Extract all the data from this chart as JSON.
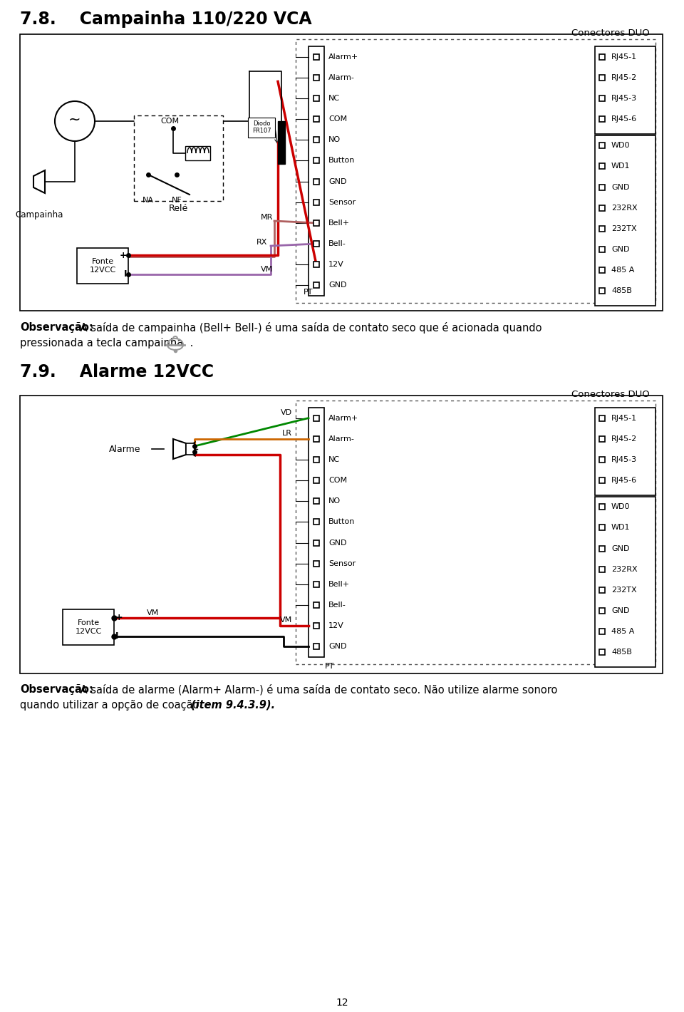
{
  "title_78": "7.8.    Campainha 110/220 VCA",
  "title_79": "7.9.    Alarme 12VCC",
  "page_number": "12",
  "obs1_bold": "Observação:",
  "obs1_line1_rest": " A saída de campainha (Bell+ Bell-) é uma saída de contato seco que é acionada quando",
  "obs1_line2": "pressionada a tecla campainha",
  "obs2_bold": "Observação:",
  "obs2_line1_rest": " A saída de alarme (Alarm+ Alarm-) é uma saída de contato seco. Não utilize alarme sonoro",
  "obs2_line2": "quando utilizar a opção de coação ",
  "obs2_italic": "(item 9.4.3.9).",
  "connector_label": "Conectores DUO",
  "left_pins": [
    "Alarm+",
    "Alarm-",
    "NC",
    "COM",
    "NO",
    "Button",
    "GND",
    "Sensor",
    "Bell+",
    "Bell-",
    "12V",
    "GND"
  ],
  "right_pins_top": [
    "RJ45-1",
    "RJ45-2",
    "RJ45-3",
    "RJ45-6"
  ],
  "right_pins_bot": [
    "WD0",
    "WD1",
    "GND",
    "232RX",
    "232TX",
    "GND",
    "485 A",
    "485B"
  ],
  "background": "#ffffff"
}
